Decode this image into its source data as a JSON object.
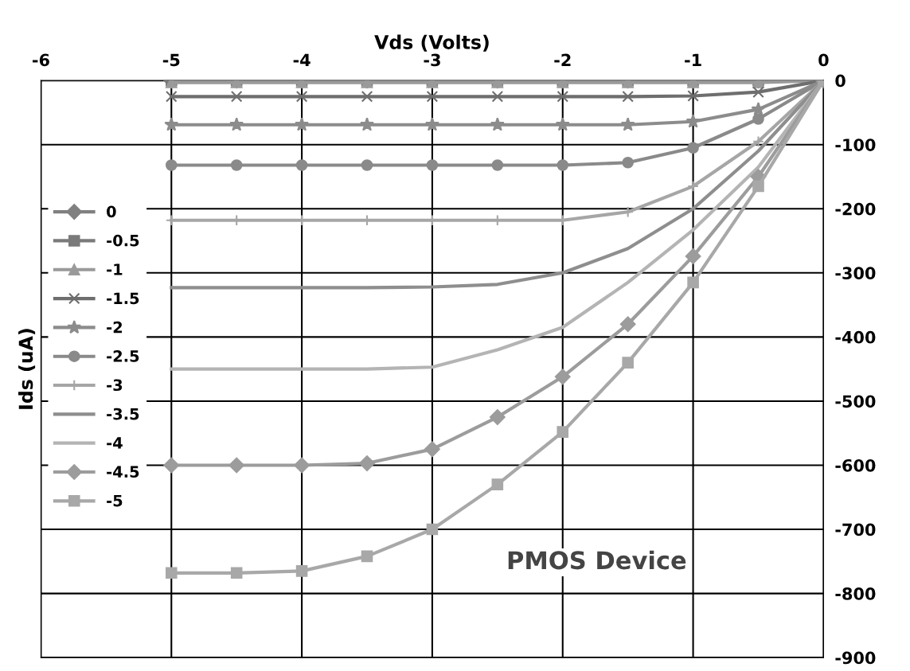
{
  "chart_data": {
    "type": "line",
    "xlabel": "Vds (Volts)",
    "ylabel": "Ids (uA)",
    "x": [
      -5,
      -4.5,
      -4,
      -3.5,
      -3,
      -2.5,
      -2,
      -1.5,
      -1,
      -0.5,
      0
    ],
    "xlim": [
      -6,
      0
    ],
    "xticks": [
      -6,
      -5,
      -4,
      -3,
      -2,
      -1,
      0
    ],
    "ylim": [
      -900,
      0
    ],
    "yticks": [
      0,
      -100,
      -200,
      -300,
      -400,
      -500,
      -600,
      -700,
      -800,
      -900
    ],
    "grid": true,
    "legend": "left",
    "series": [
      {
        "name": "0",
        "color": "#808080",
        "marker": "diamond",
        "values": [
          0,
          0,
          0,
          0,
          0,
          0,
          0,
          0,
          0,
          0,
          0
        ]
      },
      {
        "name": "-0.5",
        "color": "#7a7a7a",
        "marker": "square",
        "values": [
          0,
          0,
          0,
          0,
          0,
          0,
          0,
          0,
          0,
          0,
          0
        ]
      },
      {
        "name": "-1",
        "color": "#9a9a9a",
        "marker": "triangle",
        "values": [
          -3,
          -3,
          -3,
          -3,
          -3,
          -3,
          -3,
          -3,
          -3,
          -3,
          0
        ]
      },
      {
        "name": "-1.5",
        "color": "#6e6e6e",
        "marker": "cross",
        "values": [
          -25,
          -25,
          -25,
          -25,
          -25,
          -25,
          -25,
          -25,
          -24,
          -18,
          0
        ]
      },
      {
        "name": "-2",
        "color": "#8c8c8c",
        "marker": "star",
        "values": [
          -69,
          -69,
          -69,
          -69,
          -69,
          -69,
          -69,
          -69,
          -64,
          -45,
          0
        ]
      },
      {
        "name": "-2.5",
        "color": "#8a8a8a",
        "marker": "circle",
        "values": [
          -132,
          -132,
          -132,
          -132,
          -132,
          -132,
          -132,
          -128,
          -105,
          -60,
          0
        ]
      },
      {
        "name": "-3",
        "color": "#a6a6a6",
        "marker": "plus",
        "values": [
          -218,
          -218,
          -218,
          -218,
          -218,
          -218,
          -218,
          -205,
          -165,
          -95,
          0
        ]
      },
      {
        "name": "-3.5",
        "color": "#8e8e8e",
        "marker": "none",
        "values": [
          -323,
          -323,
          -323,
          -323,
          -322,
          -318,
          -300,
          -262,
          -200,
          -110,
          0
        ]
      },
      {
        "name": "-4",
        "color": "#b4b4b4",
        "marker": "none",
        "values": [
          -450,
          -450,
          -450,
          -450,
          -447,
          -420,
          -385,
          -315,
          -233,
          -135,
          0
        ]
      },
      {
        "name": "-4.5",
        "color": "#9c9c9c",
        "marker": "diamond",
        "values": [
          -600,
          -600,
          -600,
          -597,
          -575,
          -525,
          -462,
          -380,
          -274,
          -150,
          0
        ]
      },
      {
        "name": "-5",
        "color": "#a8a8a8",
        "marker": "square",
        "values": [
          -768,
          -768,
          -765,
          -742,
          -700,
          -630,
          -548,
          -440,
          -315,
          -165,
          0
        ]
      }
    ],
    "annotations": [
      "PMOS Device"
    ]
  }
}
